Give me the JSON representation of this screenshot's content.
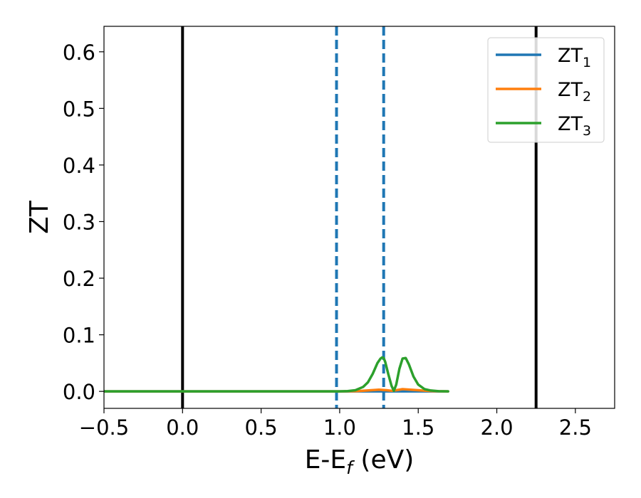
{
  "chart_data": {
    "type": "line",
    "xlabel": "E-E",
    "xlabel_subscript": "f",
    "xlabel_unit": "(eV)",
    "ylabel": "ZT",
    "xlim": [
      -0.5,
      2.75
    ],
    "ylim": [
      -0.03,
      0.645
    ],
    "xticks": [
      {
        "value": -0.5,
        "label": "−0.5"
      },
      {
        "value": 0.0,
        "label": "0.0"
      },
      {
        "value": 0.5,
        "label": "0.5"
      },
      {
        "value": 1.0,
        "label": "1.0"
      },
      {
        "value": 1.5,
        "label": "1.5"
      },
      {
        "value": 2.0,
        "label": "2.0"
      },
      {
        "value": 2.5,
        "label": "2.5"
      }
    ],
    "yticks": [
      {
        "value": 0.0,
        "label": "0.0"
      },
      {
        "value": 0.1,
        "label": "0.1"
      },
      {
        "value": 0.2,
        "label": "0.2"
      },
      {
        "value": 0.3,
        "label": "0.3"
      },
      {
        "value": 0.4,
        "label": "0.4"
      },
      {
        "value": 0.5,
        "label": "0.5"
      },
      {
        "value": 0.6,
        "label": "0.6"
      }
    ],
    "grid": false,
    "legend_position": "top-right",
    "vertical_lines": [
      {
        "x": 0.0,
        "style": "solid",
        "color": "#000000"
      },
      {
        "x": 2.25,
        "style": "solid",
        "color": "#000000"
      },
      {
        "x": 0.98,
        "style": "dashed",
        "color": "#1f77b4"
      },
      {
        "x": 1.28,
        "style": "dashed",
        "color": "#1f77b4"
      }
    ],
    "series": [
      {
        "name": "ZT",
        "subscript": "1",
        "color": "#1f77b4",
        "x": [
          -0.5,
          0.0,
          0.5,
          1.0,
          1.1,
          1.2,
          1.25,
          1.3,
          1.35,
          1.4,
          1.45,
          1.5,
          1.6,
          1.69
        ],
        "y": [
          0,
          0,
          0,
          0,
          0,
          0,
          0,
          0,
          0,
          0,
          0,
          0,
          0,
          0
        ]
      },
      {
        "name": "ZT",
        "subscript": "2",
        "color": "#ff7f0e",
        "x": [
          -0.5,
          0.0,
          0.5,
          1.0,
          1.1,
          1.15,
          1.2,
          1.25,
          1.3,
          1.33,
          1.36,
          1.4,
          1.45,
          1.5,
          1.55,
          1.6,
          1.69
        ],
        "y": [
          0,
          0,
          0,
          0,
          0.0003,
          0.001,
          0.002,
          0.003,
          0.002,
          0.001,
          0.002,
          0.004,
          0.003,
          0.002,
          0.001,
          0.0003,
          0
        ]
      },
      {
        "name": "ZT",
        "subscript": "3",
        "color": "#2ca02c",
        "x": [
          -0.5,
          0.0,
          0.5,
          1.0,
          1.05,
          1.1,
          1.15,
          1.18,
          1.21,
          1.24,
          1.26,
          1.27,
          1.28,
          1.29,
          1.31,
          1.33,
          1.345,
          1.36,
          1.38,
          1.4,
          1.42,
          1.44,
          1.47,
          1.5,
          1.54,
          1.58,
          1.63,
          1.69
        ],
        "y": [
          0,
          0,
          0,
          0,
          0.0005,
          0.002,
          0.008,
          0.016,
          0.031,
          0.05,
          0.058,
          0.06,
          0.059,
          0.052,
          0.03,
          0.01,
          0.001,
          0.012,
          0.04,
          0.058,
          0.059,
          0.048,
          0.026,
          0.012,
          0.004,
          0.0015,
          0.0003,
          0
        ]
      }
    ]
  }
}
